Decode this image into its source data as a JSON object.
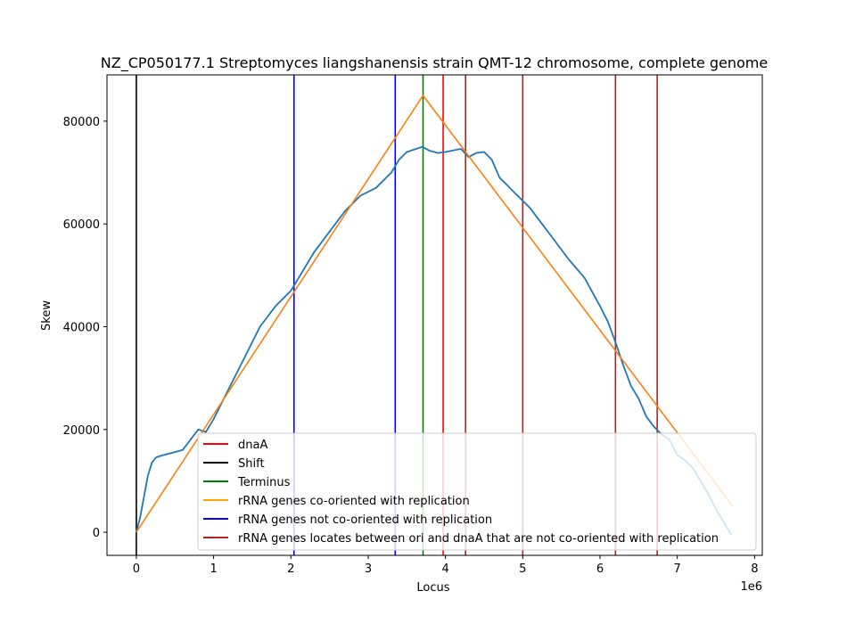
{
  "chart_data": {
    "type": "line",
    "title": "NZ_CP050177.1 Streptomyces liangshanensis strain QMT-12 chromosome, complete genome",
    "xlabel": "Locus",
    "ylabel": "Skew",
    "x_multiplier_label": "1e6",
    "xlim": [
      -380000,
      8100000
    ],
    "ylim": [
      -4500,
      89000
    ],
    "x_ticks": [
      0,
      1000000,
      2000000,
      3000000,
      4000000,
      5000000,
      6000000,
      7000000,
      8000000
    ],
    "x_tick_labels": [
      "0",
      "1",
      "2",
      "3",
      "4",
      "5",
      "6",
      "7",
      "8"
    ],
    "y_ticks": [
      0,
      20000,
      40000,
      60000,
      80000
    ],
    "y_tick_labels": [
      "0",
      "20000",
      "40000",
      "60000",
      "80000"
    ],
    "grid": false,
    "legend_position": "bottom-right",
    "series": [
      {
        "kind": "skew",
        "color": "#1f77b4",
        "x": [
          0,
          50000,
          100000,
          150000,
          200000,
          250000,
          300000,
          400000,
          500000,
          600000,
          700000,
          800000,
          900000,
          1000000,
          1200000,
          1400000,
          1600000,
          1800000,
          2000000,
          2100000,
          2300000,
          2500000,
          2700000,
          2900000,
          3100000,
          3300000,
          3400000,
          3500000,
          3600000,
          3700000,
          3800000,
          3900000,
          4000000,
          4100000,
          4200000,
          4300000,
          4400000,
          4500000,
          4600000,
          4700000,
          4800000,
          4900000,
          5000000,
          5100000,
          5200000,
          5400000,
          5600000,
          5800000,
          6000000,
          6100000,
          6200000,
          6300000,
          6400000,
          6500000,
          6600000,
          6700000,
          6800000,
          6900000,
          7000000,
          7100000,
          7200000,
          7300000,
          7400000,
          7500000,
          7600000,
          7700000
        ],
        "y": [
          0,
          3000,
          7000,
          11000,
          13500,
          14500,
          14800,
          15200,
          15600,
          16000,
          18000,
          20000,
          19500,
          22000,
          28000,
          34000,
          40000,
          44000,
          47000,
          49500,
          54500,
          58500,
          62500,
          65500,
          67000,
          70000,
          72500,
          74000,
          74500,
          75000,
          74200,
          73800,
          74000,
          74300,
          74600,
          73000,
          73800,
          74000,
          72500,
          69000,
          67500,
          66000,
          64500,
          63000,
          61000,
          57000,
          53000,
          49500,
          44000,
          41000,
          37000,
          32500,
          28500,
          26000,
          22500,
          20500,
          19000,
          18000,
          15000,
          14000,
          12500,
          10000,
          7500,
          4500,
          2000,
          -500
        ]
      },
      {
        "kind": "fit",
        "color": "#ff7f0e",
        "x": [
          0,
          3710000,
          7720000
        ],
        "y": [
          0,
          85000,
          5000
        ]
      }
    ],
    "vlines": [
      {
        "name": "Shift",
        "x": 0,
        "color": "#000000"
      },
      {
        "name": "rRNA genes not co-oriented with replication",
        "x": 2040000,
        "color": "#0000ff"
      },
      {
        "name": "rRNA genes not co-oriented with replication",
        "x": 3350000,
        "color": "#0000ff"
      },
      {
        "name": "Terminus",
        "x": 3710000,
        "color": "#008000"
      },
      {
        "name": "dnaA",
        "x": 3970000,
        "color": "#ff0000"
      },
      {
        "name": "rRNA genes locates between ori and dnaA that are not co-oriented with replication",
        "x": 4260000,
        "color": "#b22222"
      },
      {
        "name": "rRNA genes locates between ori and dnaA that are not co-oriented with replication",
        "x": 5000000,
        "color": "#b22222"
      },
      {
        "name": "rRNA genes locates between ori and dnaA that are not co-oriented with replication",
        "x": 6200000,
        "color": "#b22222"
      },
      {
        "name": "rRNA genes locates between ori and dnaA that are not co-oriented with replication",
        "x": 6740000,
        "color": "#b22222"
      }
    ],
    "legend": [
      {
        "label": "dnaA",
        "color": "#ff0000"
      },
      {
        "label": "Shift",
        "color": "#000000"
      },
      {
        "label": "Terminus",
        "color": "#008000"
      },
      {
        "label": "rRNA genes co-oriented with replication",
        "color": "#ffa500"
      },
      {
        "label": "rRNA genes not co-oriented with replication",
        "color": "#0000ff"
      },
      {
        "label": "rRNA genes locates between ori and dnaA that are not co-oriented with replication",
        "color": "#b22222"
      }
    ]
  }
}
